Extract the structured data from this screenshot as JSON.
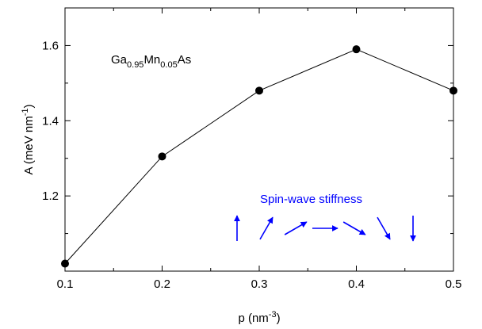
{
  "chart_data": {
    "type": "line",
    "title": "",
    "xlabel": {
      "base": "p (nm",
      "sup": "-3",
      "tail": ")"
    },
    "ylabel": {
      "base": "A (meV nm",
      "sup": "-1",
      "tail": ")"
    },
    "xlim": [
      0.1,
      0.5
    ],
    "ylim": [
      1.0,
      1.7
    ],
    "xticks": [
      "0.1",
      "0.2",
      "0.3",
      "0.4",
      "0.5"
    ],
    "yticks": [
      "1.2",
      "1.4",
      "1.6"
    ],
    "grid": false,
    "series": [
      {
        "x": [
          0.1,
          0.2,
          0.3,
          0.4,
          0.5
        ],
        "values": [
          1.02,
          1.305,
          1.48,
          1.59,
          1.48
        ],
        "color": "#000000",
        "marker": "filled-circle"
      }
    ],
    "annotations": {
      "material": {
        "parts": [
          "Ga",
          "0.95",
          "Mn",
          "0.05",
          "As"
        ]
      },
      "spin_wave_label": "Spin-wave stiffness",
      "spin_wave_color": "#0000ff",
      "spin_wave_arrow_angles_deg": [
        90,
        60,
        30,
        0,
        -30,
        -60,
        -90
      ]
    }
  }
}
